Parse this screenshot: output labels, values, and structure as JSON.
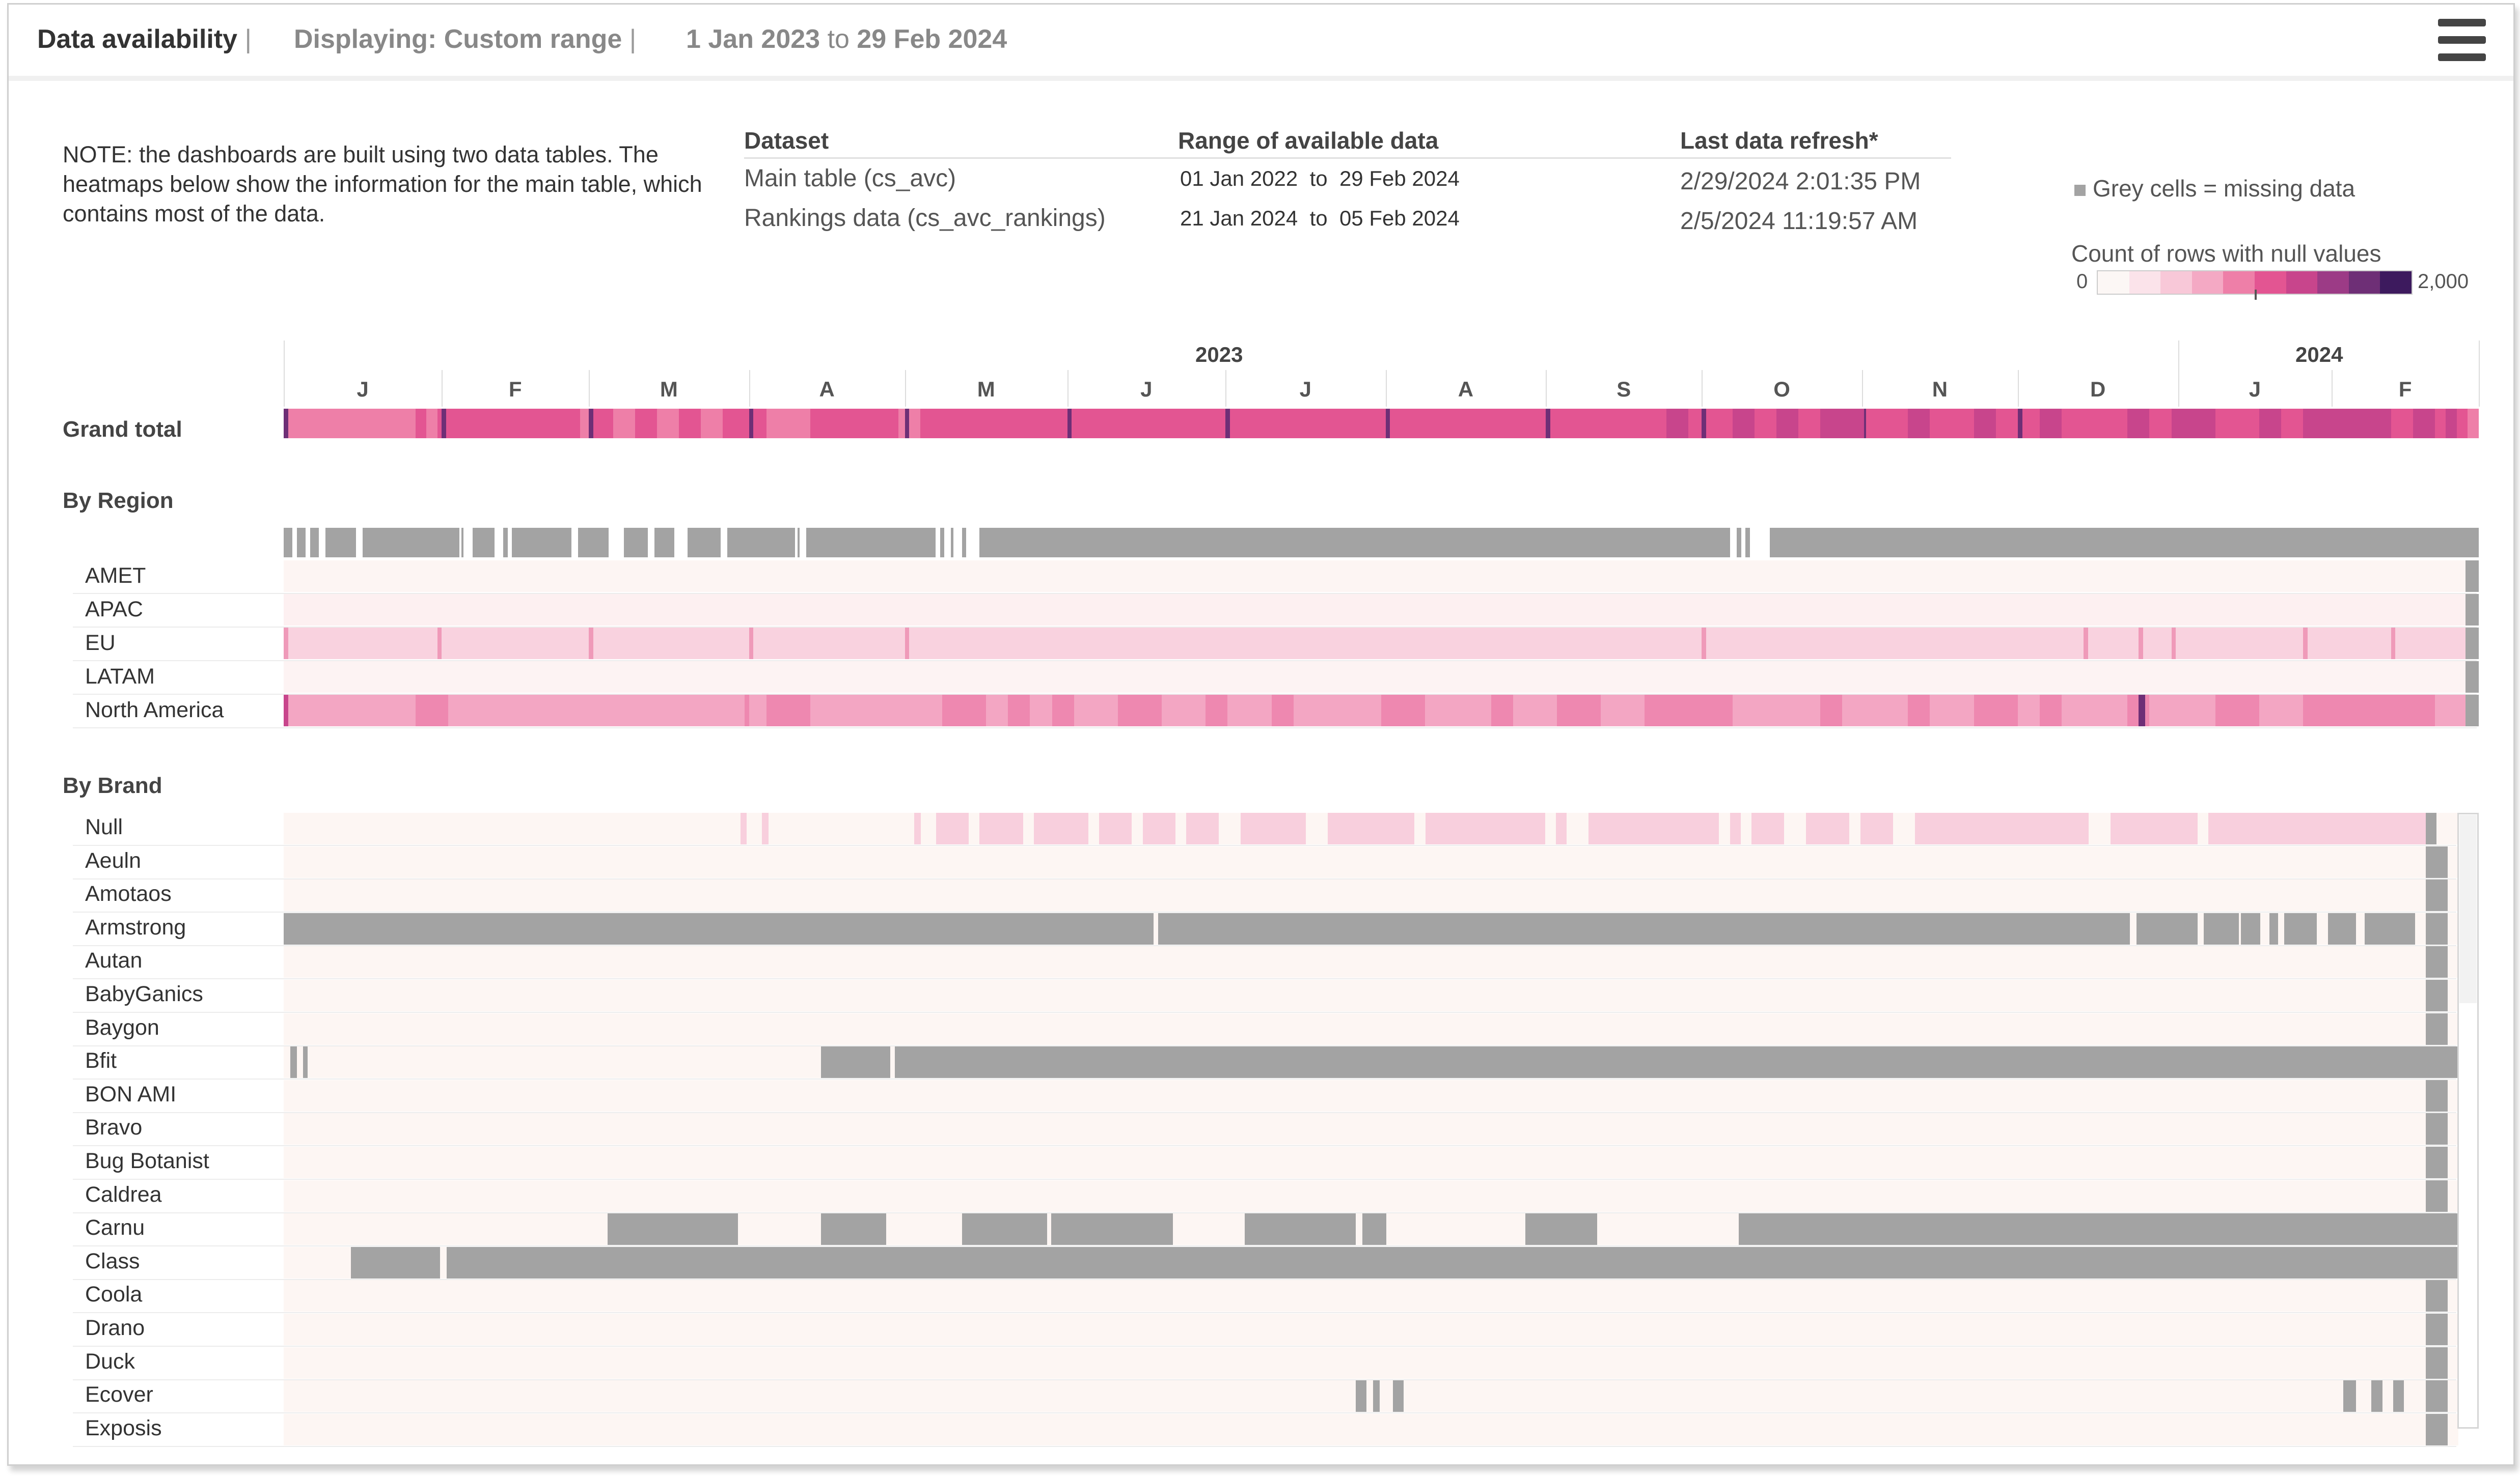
{
  "header": {
    "title": "Data availability",
    "sep1": "|",
    "displaying": "Displaying: Custom range",
    "sep2": "|",
    "range_start": "1 Jan 2023",
    "range_to": "to",
    "range_end": "29 Feb 2024",
    "menu_icon": "hamburger-menu-icon"
  },
  "info": {
    "note": "NOTE: the dashboards are built using two data tables. The heatmaps below show the information for the main table, which contains most of the data.",
    "col_dataset": "Dataset",
    "col_range": "Range of available data",
    "col_refresh": "Last data refresh*",
    "rows": [
      {
        "dataset": "Main table (cs_avc)",
        "from": "01 Jan 2022",
        "to_word": "to",
        "to": "29 Feb 2024",
        "refresh": "2/29/2024 2:01:35 PM"
      },
      {
        "dataset": "Rankings data (cs_avc_rankings)",
        "from": "21 Jan 2024",
        "to_word": "to",
        "to": "05 Feb 2024",
        "refresh": "2/5/2024 11:19:57 AM"
      }
    ]
  },
  "legend": {
    "grey_note": "Grey cells = missing data",
    "scale_title": "Count of rows with null values",
    "min": "0",
    "max": "2,000",
    "colors": [
      "#fcf7f5",
      "#fbe3ea",
      "#f8c8d8",
      "#f4a9c4",
      "#ee7fa8",
      "#e35592",
      "#c8458c",
      "#9c3b86",
      "#6e2f76",
      "#3d1a5e"
    ]
  },
  "timeline": {
    "year_2023": "2023",
    "year_2024": "2024",
    "months": [
      "J",
      "F",
      "M",
      "A",
      "M",
      "J",
      "J",
      "A",
      "S",
      "O",
      "N",
      "D",
      "J",
      "F"
    ]
  },
  "colors": {
    "grey": "#a3a3a3",
    "bg": "#fdf6f3"
  },
  "sections": {
    "grand_total": "Grand total",
    "by_region": "By Region",
    "by_brand": "By Brand"
  },
  "regions": [
    "AMET",
    "APAC",
    "EU",
    "LATAM",
    "North America"
  ],
  "brands": [
    "Null",
    "Aeuln",
    "Amotaos",
    "Armstrong",
    "Autan",
    "BabyGanics",
    "Baygon",
    "Bfit",
    "BON AMI",
    "Bravo",
    "Bug Botanist",
    "Caldrea",
    "Carnu",
    "Class",
    "Coola",
    "Drano",
    "Duck",
    "Ecover",
    "Exposis"
  ]
}
